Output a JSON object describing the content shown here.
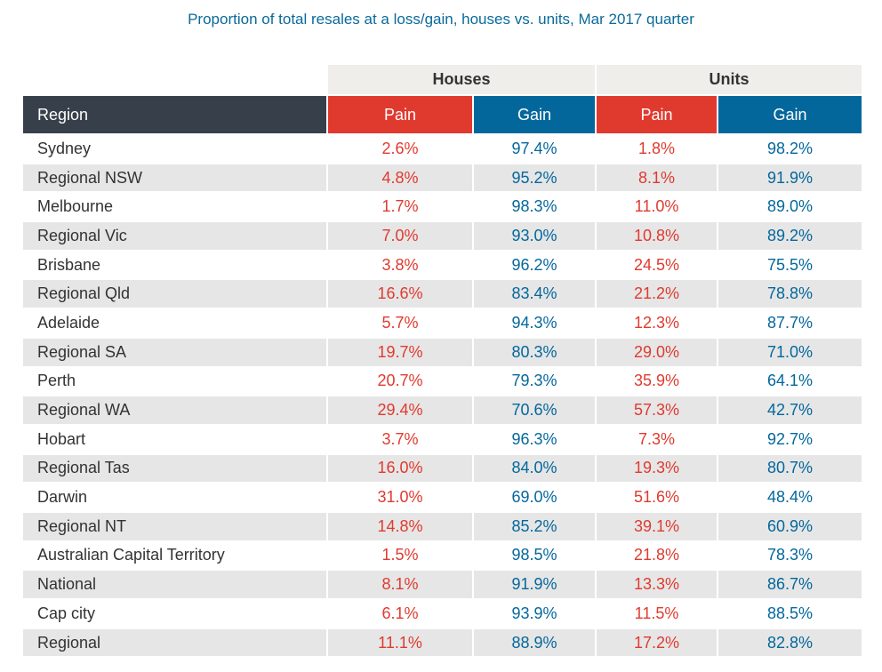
{
  "chart_data": {
    "type": "table",
    "title": "Proportion of total resales at a loss/gain, houses vs. units, Mar 2017 quarter",
    "groups": [
      "Houses",
      "Units"
    ],
    "columns": [
      "Region",
      "Pain",
      "Gain",
      "Pain",
      "Gain"
    ],
    "rows": [
      [
        "Sydney",
        "2.6%",
        "97.4%",
        "1.8%",
        "98.2%"
      ],
      [
        "Regional NSW",
        "4.8%",
        "95.2%",
        "8.1%",
        "91.9%"
      ],
      [
        "Melbourne",
        "1.7%",
        "98.3%",
        "11.0%",
        "89.0%"
      ],
      [
        "Regional Vic",
        "7.0%",
        "93.0%",
        "10.8%",
        "89.2%"
      ],
      [
        "Brisbane",
        "3.8%",
        "96.2%",
        "24.5%",
        "75.5%"
      ],
      [
        "Regional Qld",
        "16.6%",
        "83.4%",
        "21.2%",
        "78.8%"
      ],
      [
        "Adelaide",
        "5.7%",
        "94.3%",
        "12.3%",
        "87.7%"
      ],
      [
        "Regional SA",
        "19.7%",
        "80.3%",
        "29.0%",
        "71.0%"
      ],
      [
        "Perth",
        "20.7%",
        "79.3%",
        "35.9%",
        "64.1%"
      ],
      [
        "Regional WA",
        "29.4%",
        "70.6%",
        "57.3%",
        "42.7%"
      ],
      [
        "Hobart",
        "3.7%",
        "96.3%",
        "7.3%",
        "92.7%"
      ],
      [
        "Regional Tas",
        "16.0%",
        "84.0%",
        "19.3%",
        "80.7%"
      ],
      [
        "Darwin",
        "31.0%",
        "69.0%",
        "51.6%",
        "48.4%"
      ],
      [
        "Regional NT",
        "14.8%",
        "85.2%",
        "39.1%",
        "60.9%"
      ],
      [
        "Australian Capital Territory",
        "1.5%",
        "98.5%",
        "21.8%",
        "78.3%"
      ],
      [
        "National",
        "8.1%",
        "91.9%",
        "13.3%",
        "86.7%"
      ],
      [
        "Cap city",
        "6.1%",
        "93.9%",
        "11.5%",
        "88.5%"
      ],
      [
        "Regional",
        "11.1%",
        "88.9%",
        "17.2%",
        "82.8%"
      ]
    ],
    "colors": {
      "pain": "#e03a2f",
      "gain": "#04679c",
      "region_header": "#37404a",
      "alt_row": "#e6e6e6"
    }
  }
}
